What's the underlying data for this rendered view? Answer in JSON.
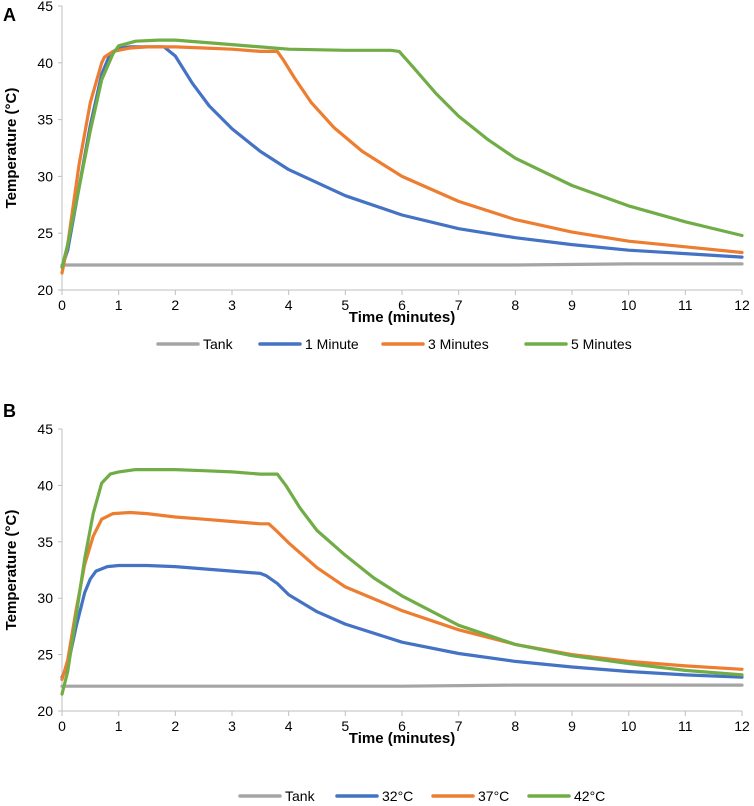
{
  "chart_data": [
    {
      "panel_label": "A",
      "type": "line",
      "xlabel": "Time (minutes)",
      "ylabel": "Temperature (°C)",
      "xlim": [
        0,
        12
      ],
      "ylim": [
        20,
        45
      ],
      "xticks": [
        0,
        1,
        2,
        3,
        4,
        5,
        6,
        7,
        8,
        9,
        10,
        11,
        12
      ],
      "yticks": [
        20,
        25,
        30,
        35,
        40,
        45
      ],
      "grid": false,
      "legend_position": "bottom",
      "series": [
        {
          "name": "Tank",
          "color": "#a5a5a5",
          "x": [
            0,
            2,
            4,
            6,
            8,
            10,
            12
          ],
          "y": [
            22.2,
            22.2,
            22.2,
            22.2,
            22.2,
            22.3,
            22.3
          ]
        },
        {
          "name": "1 Minute",
          "color": "#4472c4",
          "x": [
            0,
            0.1,
            0.3,
            0.5,
            0.7,
            0.85,
            1.0,
            1.2,
            1.5,
            1.8,
            2.0,
            2.3,
            2.6,
            3.0,
            3.5,
            4.0,
            5.0,
            6.0,
            7.0,
            8.0,
            9.0,
            10.0,
            11.0,
            12.0
          ],
          "y": [
            22.0,
            23.5,
            29.0,
            34.5,
            39.0,
            40.8,
            41.3,
            41.4,
            41.4,
            41.4,
            40.6,
            38.2,
            36.2,
            34.2,
            32.2,
            30.6,
            28.3,
            26.6,
            25.4,
            24.6,
            24.0,
            23.5,
            23.2,
            22.9
          ]
        },
        {
          "name": "3 Minutes",
          "color": "#ed7d31",
          "x": [
            0,
            0.1,
            0.3,
            0.5,
            0.7,
            0.75,
            0.9,
            1.2,
            1.5,
            2.0,
            2.5,
            3.0,
            3.5,
            3.8,
            3.9,
            4.1,
            4.4,
            4.8,
            5.3,
            6.0,
            7.0,
            8.0,
            9.0,
            10.0,
            11.0,
            12.0
          ],
          "y": [
            21.5,
            24.0,
            31.0,
            36.5,
            40.0,
            40.5,
            41.0,
            41.3,
            41.4,
            41.4,
            41.3,
            41.2,
            41.0,
            41.0,
            40.3,
            38.7,
            36.5,
            34.3,
            32.2,
            30.0,
            27.8,
            26.2,
            25.1,
            24.3,
            23.8,
            23.3
          ]
        },
        {
          "name": "5 Minutes",
          "color": "#70ad47",
          "x": [
            0,
            0.1,
            0.3,
            0.5,
            0.7,
            0.9,
            1.0,
            1.3,
            1.7,
            2.0,
            2.5,
            3.0,
            3.5,
            4.0,
            5.0,
            5.8,
            5.95,
            6.2,
            6.6,
            7.0,
            7.5,
            8.0,
            9.0,
            10.0,
            11.0,
            12.0
          ],
          "y": [
            22.0,
            24.0,
            29.0,
            34.0,
            38.5,
            40.8,
            41.5,
            41.9,
            42.0,
            42.0,
            41.8,
            41.6,
            41.4,
            41.2,
            41.1,
            41.1,
            41.0,
            39.6,
            37.3,
            35.3,
            33.3,
            31.6,
            29.2,
            27.4,
            26.0,
            24.8
          ]
        }
      ]
    },
    {
      "panel_label": "B",
      "type": "line",
      "xlabel": "Time (minutes)",
      "ylabel": "Temperature (°C)",
      "xlim": [
        0,
        12
      ],
      "ylim": [
        20,
        45
      ],
      "xticks": [
        0,
        1,
        2,
        3,
        4,
        5,
        6,
        7,
        8,
        9,
        10,
        11,
        12
      ],
      "yticks": [
        20,
        25,
        30,
        35,
        40,
        45
      ],
      "grid": false,
      "legend_position": "bottom",
      "series": [
        {
          "name": "Tank",
          "color": "#a5a5a5",
          "x": [
            0,
            2,
            4,
            6,
            8,
            10,
            12
          ],
          "y": [
            22.2,
            22.2,
            22.2,
            22.2,
            22.3,
            22.3,
            22.3
          ]
        },
        {
          "name": "32°C",
          "color": "#4472c4",
          "x": [
            0,
            0.1,
            0.25,
            0.4,
            0.5,
            0.6,
            0.8,
            1.0,
            1.5,
            2.0,
            2.5,
            3.0,
            3.5,
            3.6,
            3.8,
            4.0,
            4.5,
            5.0,
            6.0,
            7.0,
            8.0,
            9.0,
            10.0,
            11.0,
            12.0
          ],
          "y": [
            23.0,
            24.0,
            27.5,
            30.5,
            31.7,
            32.4,
            32.8,
            32.9,
            32.9,
            32.8,
            32.6,
            32.4,
            32.2,
            32.0,
            31.3,
            30.3,
            28.8,
            27.7,
            26.1,
            25.1,
            24.4,
            23.9,
            23.5,
            23.2,
            23.0
          ]
        },
        {
          "name": "37°C",
          "color": "#ed7d31",
          "x": [
            0,
            0.1,
            0.25,
            0.4,
            0.55,
            0.7,
            0.9,
            1.2,
            1.5,
            2.0,
            2.5,
            3.0,
            3.5,
            3.65,
            3.8,
            4.0,
            4.5,
            5.0,
            6.0,
            7.0,
            8.0,
            9.0,
            10.0,
            11.0,
            12.0
          ],
          "y": [
            22.8,
            24.5,
            29.0,
            33.0,
            35.5,
            37.0,
            37.5,
            37.6,
            37.5,
            37.2,
            37.0,
            36.8,
            36.6,
            36.6,
            35.9,
            34.9,
            32.7,
            31.0,
            28.9,
            27.2,
            25.9,
            25.0,
            24.4,
            24.0,
            23.7
          ]
        },
        {
          "name": "42°C",
          "color": "#70ad47",
          "x": [
            0,
            0.1,
            0.25,
            0.4,
            0.55,
            0.7,
            0.85,
            1.0,
            1.3,
            1.7,
            2.0,
            2.5,
            3.0,
            3.5,
            3.8,
            3.95,
            4.2,
            4.5,
            5.0,
            5.5,
            6.0,
            7.0,
            8.0,
            9.0,
            10.0,
            11.0,
            12.0
          ],
          "y": [
            21.5,
            23.5,
            28.5,
            33.5,
            37.5,
            40.2,
            41.0,
            41.2,
            41.4,
            41.4,
            41.4,
            41.3,
            41.2,
            41.0,
            41.0,
            40.0,
            38.0,
            36.0,
            33.8,
            31.8,
            30.2,
            27.6,
            25.9,
            24.9,
            24.2,
            23.6,
            23.2
          ]
        }
      ]
    }
  ]
}
